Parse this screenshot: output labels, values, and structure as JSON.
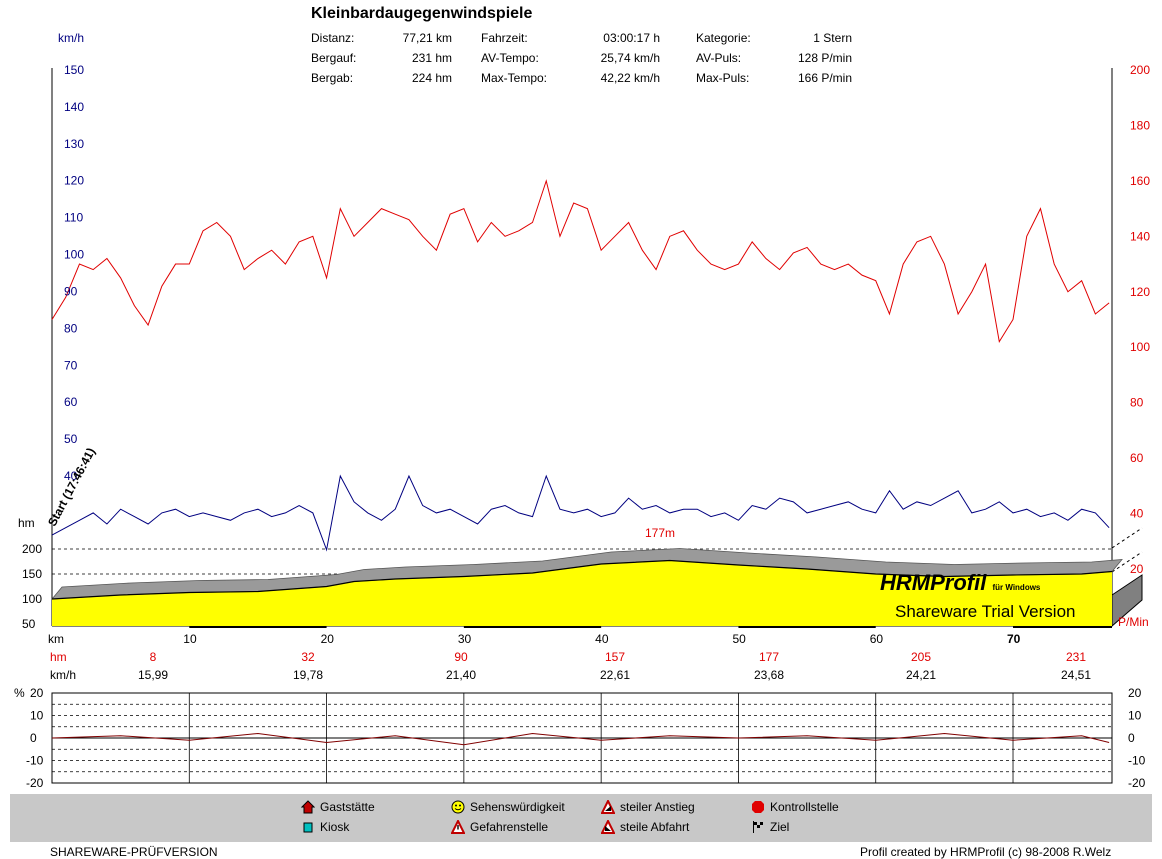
{
  "title": "Kleinbardaugegenwindspiele",
  "stats": [
    {
      "label": "Distanz:",
      "value": "77,21 km"
    },
    {
      "label": "Bergauf:",
      "value": "231 hm"
    },
    {
      "label": "Bergab:",
      "value": "224 hm"
    },
    {
      "label": "Fahrzeit:",
      "value": "03:00:17 h"
    },
    {
      "label": "AV-Tempo:",
      "value": "25,74 km/h"
    },
    {
      "label": "Max-Tempo:",
      "value": "42,22 km/h"
    },
    {
      "label": "Kategorie:",
      "value": "1 Stern"
    },
    {
      "label": "AV-Puls:",
      "value": "128 P/min"
    },
    {
      "label": "Max-Puls:",
      "value": "166 P/min"
    }
  ],
  "axes": {
    "speed_unit": "km/h",
    "speed_ticks": [
      "150",
      "140",
      "130",
      "120",
      "110",
      "100",
      "90",
      "80",
      "70",
      "60",
      "50",
      "40"
    ],
    "pulse_unit": "P/Min",
    "pulse_ticks": [
      "200",
      "180",
      "160",
      "140",
      "120",
      "100",
      "80",
      "60",
      "40",
      "20"
    ],
    "alt_unit": "hm",
    "alt_ticks": [
      "200",
      "150",
      "100",
      "50"
    ],
    "x_unit": "km",
    "x_ticks": [
      "10",
      "20",
      "30",
      "40",
      "50",
      "60",
      "70"
    ],
    "grade_unit": "%",
    "grade_ticks_left": [
      "20",
      "10",
      "0",
      "-10",
      "-20"
    ],
    "grade_ticks_right": [
      "20",
      "10",
      "0",
      "-10",
      "-20"
    ]
  },
  "start_label": "Start (17:46:41)",
  "peak_label": "177m",
  "watermark": {
    "brand": "HRMProfil",
    "brand_sub": "für Windows",
    "trial": "Shareware Trial  Version"
  },
  "summary_rows": {
    "hm_label": "hm",
    "kmh_label": "km/h",
    "hm_values": [
      "8",
      "32",
      "90",
      "157",
      "177",
      "205",
      "231"
    ],
    "kmh_values": [
      "15,99",
      "19,78",
      "21,40",
      "22,61",
      "23,68",
      "24,21",
      "24,51"
    ]
  },
  "legend": [
    {
      "label": "Gaststätte",
      "icon": "house-icon"
    },
    {
      "label": "Kiosk",
      "icon": "cup-icon"
    },
    {
      "label": "Sehenswürdigkeit",
      "icon": "smiley-icon"
    },
    {
      "label": "Gefahrenstelle",
      "icon": "warning-icon"
    },
    {
      "label": "steiler Anstieg",
      "icon": "steep-climb-icon"
    },
    {
      "label": "steile Abfahrt",
      "icon": "steep-descent-icon"
    },
    {
      "label": "Kontrollstelle",
      "icon": "stop-icon"
    },
    {
      "label": "Ziel",
      "icon": "finish-flag-icon"
    }
  ],
  "footer_left": "SHAREWARE-PRÜFVERSION",
  "footer_right": "Profil created by HRMProfil (c) 98-2008 R.Welz",
  "colors": {
    "pulse": "#e00000",
    "speed": "#000080",
    "altitude_fill": "#ffff00",
    "grade": "#800000",
    "legend_bg": "#c8c8c8"
  },
  "chart_data": {
    "type": "line",
    "x_unit": "km",
    "xlim": [
      0,
      77.21
    ],
    "series": [
      {
        "axis": "right",
        "unit": "P/min",
        "ylim": [
          0,
          200
        ],
        "x": [
          0,
          1,
          2,
          3,
          4,
          5,
          6,
          7,
          8,
          9,
          10,
          11,
          12,
          13,
          14,
          15,
          16,
          17,
          18,
          19,
          20,
          21,
          22,
          23,
          24,
          25,
          26,
          27,
          28,
          29,
          30,
          31,
          32,
          33,
          34,
          35,
          36,
          37,
          38,
          39,
          40,
          41,
          42,
          43,
          44,
          45,
          46,
          47,
          48,
          49,
          50,
          51,
          52,
          53,
          54,
          55,
          56,
          57,
          58,
          59,
          60,
          61,
          62,
          63,
          64,
          65,
          66,
          67,
          68,
          69,
          70,
          71,
          72,
          73,
          74,
          75,
          76,
          77
        ],
        "values": [
          110,
          118,
          130,
          128,
          132,
          125,
          115,
          108,
          122,
          130,
          130,
          142,
          145,
          140,
          128,
          132,
          135,
          130,
          138,
          140,
          125,
          150,
          140,
          145,
          150,
          148,
          146,
          140,
          135,
          148,
          150,
          138,
          145,
          140,
          142,
          145,
          160,
          140,
          152,
          150,
          135,
          140,
          145,
          135,
          128,
          140,
          142,
          135,
          130,
          128,
          130,
          138,
          132,
          128,
          134,
          136,
          130,
          128,
          130,
          126,
          124,
          112,
          130,
          138,
          140,
          130,
          112,
          120,
          130,
          102,
          110,
          140,
          150,
          130,
          120,
          124,
          112,
          116
        ]
      },
      {
        "axis": "left",
        "unit": "km/h",
        "ylim": [
          40,
          150
        ],
        "x": [
          0,
          1,
          2,
          3,
          4,
          5,
          6,
          7,
          8,
          9,
          10,
          11,
          12,
          13,
          14,
          15,
          16,
          17,
          18,
          19,
          20,
          21,
          22,
          23,
          24,
          25,
          26,
          27,
          28,
          29,
          30,
          31,
          32,
          33,
          34,
          35,
          36,
          37,
          38,
          39,
          40,
          41,
          42,
          43,
          44,
          45,
          46,
          47,
          48,
          49,
          50,
          51,
          52,
          53,
          54,
          55,
          56,
          57,
          58,
          59,
          60,
          61,
          62,
          63,
          64,
          65,
          66,
          67,
          68,
          69,
          70,
          71,
          72,
          73,
          74,
          75,
          76,
          77
        ],
        "values": [
          24,
          26,
          28,
          30,
          27,
          31,
          29,
          27,
          30,
          31,
          29,
          30,
          29,
          28,
          30,
          31,
          29,
          30,
          32,
          30,
          20,
          40,
          33,
          30,
          28,
          31,
          40,
          32,
          30,
          31,
          29,
          27,
          31,
          32,
          30,
          29,
          40,
          31,
          30,
          31,
          29,
          30,
          34,
          31,
          32,
          30,
          31,
          31,
          29,
          30,
          28,
          32,
          31,
          34,
          33,
          30,
          31,
          32,
          33,
          31,
          30,
          36,
          31,
          33,
          32,
          34,
          36,
          30,
          31,
          33,
          30,
          31,
          29,
          30,
          28,
          31,
          30,
          26
        ]
      },
      {
        "axis": "altitude",
        "unit": "hm",
        "ylim": [
          50,
          220
        ],
        "x": [
          0,
          5,
          10,
          15,
          20,
          22,
          25,
          30,
          35,
          40,
          45,
          50,
          55,
          60,
          65,
          70,
          75,
          77.21
        ],
        "values": [
          100,
          108,
          113,
          115,
          125,
          135,
          140,
          145,
          152,
          170,
          177,
          168,
          160,
          150,
          145,
          148,
          150,
          155
        ]
      },
      {
        "axis": "grade",
        "unit": "%",
        "ylim": [
          -20,
          20
        ],
        "x": [
          0,
          5,
          10,
          15,
          20,
          25,
          30,
          35,
          40,
          45,
          50,
          55,
          60,
          65,
          70,
          75,
          77
        ],
        "values": [
          0,
          1,
          -1,
          2,
          -2,
          1,
          -3,
          2,
          -1,
          1,
          0,
          1,
          -1,
          2,
          -1,
          1,
          -2
        ]
      }
    ]
  }
}
